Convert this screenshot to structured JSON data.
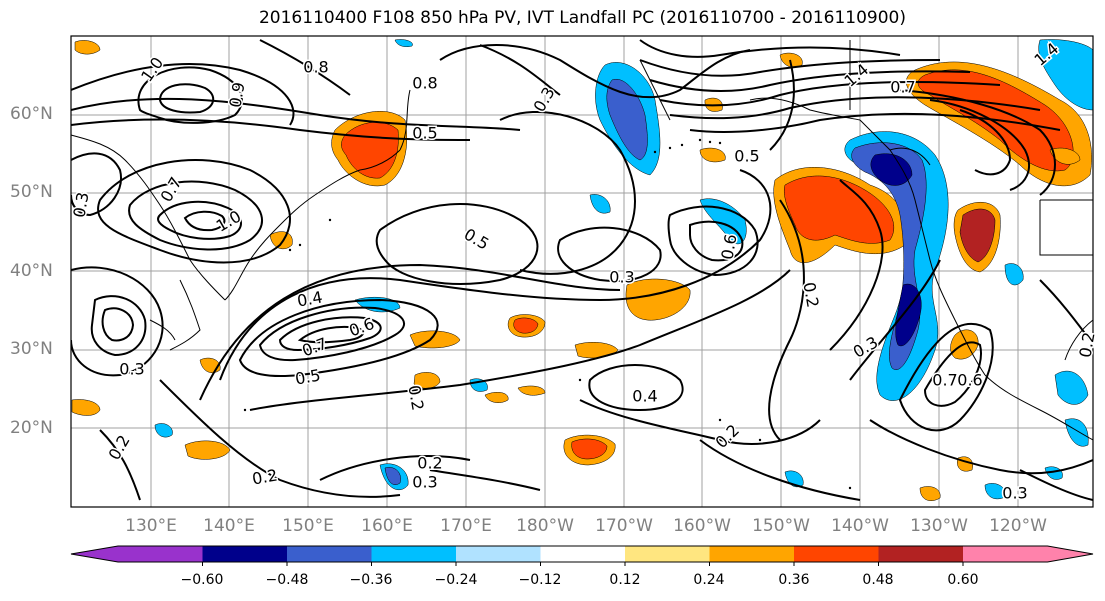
{
  "title": "2016110400 F108 850 hPa PV, IVT Landfall PC (2016110700 - 2016110900)",
  "lat_labels": [
    "60°N",
    "50°N",
    "40°N",
    "30°N",
    "20°N"
  ],
  "lon_labels": [
    "130°E",
    "140°E",
    "150°E",
    "160°E",
    "170°E",
    "180°W",
    "170°W",
    "160°W",
    "150°W",
    "140°W",
    "130°W",
    "120°W"
  ],
  "colorbar": {
    "ticks": [
      "−0.60",
      "−0.48",
      "−0.36",
      "−0.24",
      "−0.12",
      "0.12",
      "0.24",
      "0.36",
      "0.48",
      "0.60"
    ],
    "colors": [
      "#9932cc",
      "#00008b",
      "#3a5fcd",
      "#00bfff",
      "#b0e2ff",
      "#ffffff",
      "#ffe680",
      "#ffa500",
      "#ff4500",
      "#b22222",
      "#ff82ab"
    ]
  },
  "contour_labels": [
    "1.0",
    "0.8",
    "0.8",
    "0.9",
    "0.3",
    "0.5",
    "0.7",
    "1.4",
    "1.4",
    "0.3",
    "0.7",
    "1.0",
    "0.5",
    "0.5",
    "0.3",
    "0.6",
    "0.2",
    "0.4",
    "0.7",
    "0.6",
    "0.5",
    "0.4",
    "0.2",
    "0.2",
    "0.3",
    "0.2",
    "0.3",
    "0.7",
    "0.6",
    "0.2",
    "0.3",
    "0.2",
    "0.3",
    "0.2"
  ]
}
